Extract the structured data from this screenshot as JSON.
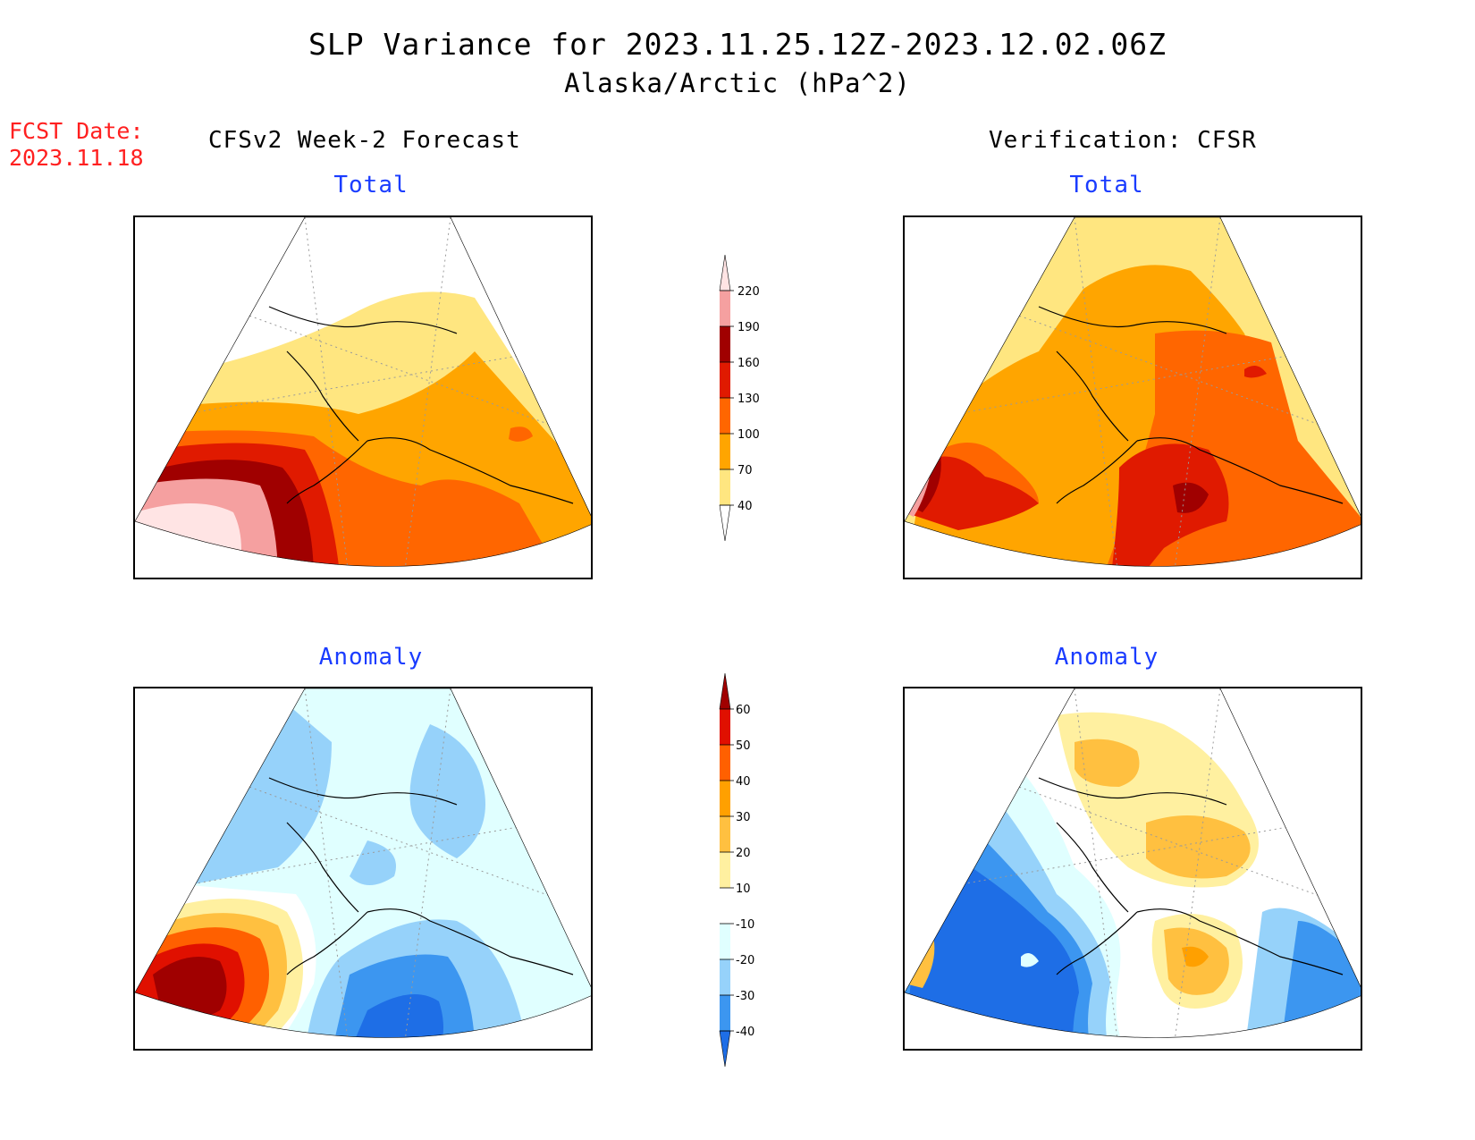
{
  "title": "SLP Variance for 2023.11.25.12Z-2023.12.02.06Z",
  "subtitle": "Alaska/Arctic (hPa^2)",
  "fcst_date_label": "FCST Date:",
  "fcst_date_value": "2023.11.18",
  "left_header": "CFSv2 Week-2 Forecast",
  "right_header": "Verification: CFSR",
  "panels": {
    "total_label": "Total",
    "anomaly_label": "Anomaly"
  },
  "colorbar_total": {
    "levels": [
      "40",
      "70",
      "100",
      "130",
      "160",
      "190",
      "220"
    ],
    "colors": [
      "#ffe680",
      "#ffa500",
      "#ff6600",
      "#e01a00",
      "#a00000",
      "#f5a0a0",
      "#ffe4e4"
    ]
  },
  "colorbar_anomaly": {
    "levels": [
      "-40",
      "-30",
      "-20",
      "-10",
      "10",
      "20",
      "30",
      "40",
      "50",
      "60"
    ],
    "colors": [
      "#1e6ee6",
      "#3c96f0",
      "#96d2fa",
      "#e0ffff",
      "#ffffff",
      "#fff0a0",
      "#ffc040",
      "#ffa000",
      "#ff6000",
      "#e01000",
      "#a00000"
    ]
  }
}
